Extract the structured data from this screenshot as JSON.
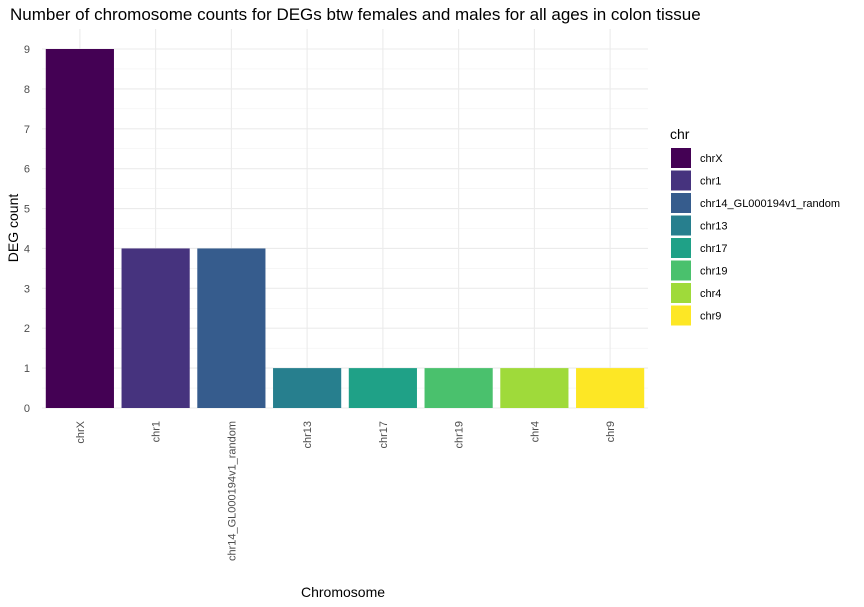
{
  "chart_data": {
    "type": "bar",
    "title": "Number of chromosome counts for DEGs btw females and males for all ages in colon tissue",
    "xlabel": "Chromosome",
    "ylabel": "DEG count",
    "categories": [
      "chrX",
      "chr1",
      "chr14_GL000194v1_random",
      "chr13",
      "chr17",
      "chr19",
      "chr4",
      "chr9"
    ],
    "values": [
      9,
      4,
      4,
      1,
      1,
      1,
      1,
      1
    ],
    "colors": [
      "#440154",
      "#46337E",
      "#365C8D",
      "#277F8E",
      "#1FA187",
      "#4AC16D",
      "#9FDA3A",
      "#FDE725"
    ],
    "yticks": [
      "0",
      "1",
      "2",
      "3",
      "4",
      "5",
      "6",
      "7",
      "8",
      "9"
    ],
    "ylim": [
      0,
      9
    ],
    "grid": true,
    "legend": {
      "title": "chr",
      "position": "right",
      "entries": [
        "chrX",
        "chr1",
        "chr14_GL000194v1_random",
        "chr13",
        "chr17",
        "chr19",
        "chr4",
        "chr9"
      ]
    }
  }
}
